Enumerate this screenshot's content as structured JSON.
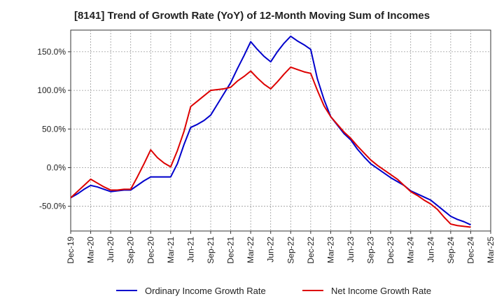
{
  "chart_data": {
    "type": "line",
    "title": "[8141]  Trend of Growth Rate (YoY) of 12-Month Moving Sum of Incomes",
    "xlabel": "",
    "ylabel": "",
    "ylim": [
      -82,
      178
    ],
    "grid": true,
    "legend_position": "bottom",
    "x_tick_labels": [
      "Dec-19",
      "Mar-20",
      "Jun-20",
      "Sep-20",
      "Dec-20",
      "Mar-21",
      "Jun-21",
      "Sep-21",
      "Dec-21",
      "Mar-22",
      "Jun-22",
      "Sep-22",
      "Dec-22",
      "Mar-23",
      "Jun-23",
      "Sep-23",
      "Dec-23",
      "Mar-24",
      "Jun-24",
      "Sep-24",
      "Dec-24",
      "Mar-25"
    ],
    "y_ticks": [
      150,
      100,
      50,
      0,
      -50
    ],
    "y_tick_labels": [
      "150.0%",
      "100.0%",
      "50.0%",
      "0.0%",
      "-50.0%"
    ],
    "x": [
      "Dec-19",
      "Jan-20",
      "Feb-20",
      "Mar-20",
      "Apr-20",
      "May-20",
      "Jun-20",
      "Jul-20",
      "Aug-20",
      "Sep-20",
      "Oct-20",
      "Nov-20",
      "Dec-20",
      "Jan-21",
      "Feb-21",
      "Mar-21",
      "Apr-21",
      "May-21",
      "Jun-21",
      "Jul-21",
      "Aug-21",
      "Sep-21",
      "Oct-21",
      "Nov-21",
      "Dec-21",
      "Jan-22",
      "Feb-22",
      "Mar-22",
      "Apr-22",
      "May-22",
      "Jun-22",
      "Jul-22",
      "Aug-22",
      "Sep-22",
      "Oct-22",
      "Nov-22",
      "Dec-22",
      "Jan-23",
      "Feb-23",
      "Mar-23",
      "Apr-23",
      "May-23",
      "Jun-23",
      "Jul-23",
      "Aug-23",
      "Sep-23",
      "Oct-23",
      "Nov-23",
      "Dec-23",
      "Jan-24",
      "Feb-24",
      "Mar-24",
      "Apr-24",
      "May-24",
      "Jun-24",
      "Jul-24",
      "Aug-24",
      "Sep-24",
      "Oct-24",
      "Nov-24",
      "Dec-24"
    ],
    "series": [
      {
        "name": "Ordinary Income Growth Rate",
        "color": "#0000cc",
        "values": [
          -39,
          -34,
          -28,
          -23,
          -25,
          -28,
          -31,
          -30,
          -29,
          -29,
          -23,
          -17,
          -12,
          -12,
          -12,
          -12,
          5,
          30,
          52,
          56,
          61,
          68,
          82,
          96,
          110,
          128,
          145,
          163,
          153,
          144,
          137,
          150,
          161,
          170,
          164,
          159,
          153,
          115,
          88,
          66,
          55,
          44,
          36,
          24,
          14,
          5,
          -1,
          -7,
          -13,
          -18,
          -23,
          -30,
          -34,
          -38,
          -42,
          -49,
          -56,
          -63,
          -67,
          -70,
          -74
        ]
      },
      {
        "name": "Net Income Growth Rate",
        "color": "#dd0000",
        "values": [
          -39,
          -31,
          -23,
          -15,
          -20,
          -25,
          -29,
          -29,
          -28,
          -28,
          -12,
          5,
          23,
          13,
          6,
          1,
          22,
          47,
          79,
          86,
          93,
          100,
          101,
          102,
          104,
          112,
          118,
          125,
          116,
          108,
          102,
          111,
          121,
          130,
          127,
          124,
          122,
          100,
          80,
          66,
          56,
          46,
          38,
          28,
          19,
          10,
          3,
          -3,
          -9,
          -15,
          -23,
          -31,
          -36,
          -42,
          -47,
          -54,
          -64,
          -73,
          -75,
          -76,
          -77
        ]
      }
    ]
  }
}
